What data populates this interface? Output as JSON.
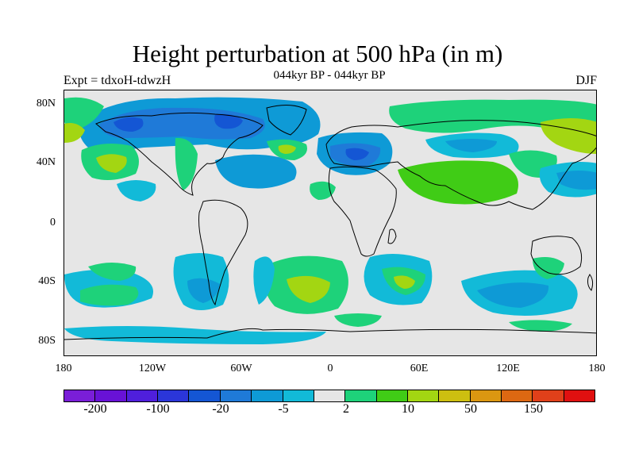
{
  "title": "Height perturbation at 500 hPa (in m)",
  "subtitle": "044kyr BP - 044kyr BP",
  "left_label": "Expt = tdxoH-tdwzH",
  "right_label": "DJF",
  "lat_ticks": [
    "80N",
    "40N",
    "0",
    "40S",
    "80S"
  ],
  "lon_ticks": [
    "180",
    "120W",
    "60W",
    "0",
    "60E",
    "120E",
    "180"
  ],
  "colorbar": {
    "colors": [
      "#7a1ed8",
      "#6812d6",
      "#4f1fdc",
      "#2b36d9",
      "#1456d4",
      "#1f7ad8",
      "#0e9ad6",
      "#12bad8",
      "#e6e6e6",
      "#1ed27a",
      "#40cc16",
      "#a3d612",
      "#cdbf10",
      "#db9711",
      "#dd6812",
      "#e0401a",
      "#e01010"
    ],
    "labels": [
      "-200",
      "-100",
      "-20",
      "-5",
      "2",
      "10",
      "50",
      "150"
    ]
  },
  "field_colors": {
    "neutral": "#e6e6e6",
    "neg_light": "#12bad8",
    "neg_mid": "#0e9ad6",
    "neg_dark": "#1f7ad8",
    "neg_deep": "#1456d4",
    "pos_light": "#1ed27a",
    "pos_mid": "#40cc16",
    "pos_strong": "#a3d612"
  }
}
